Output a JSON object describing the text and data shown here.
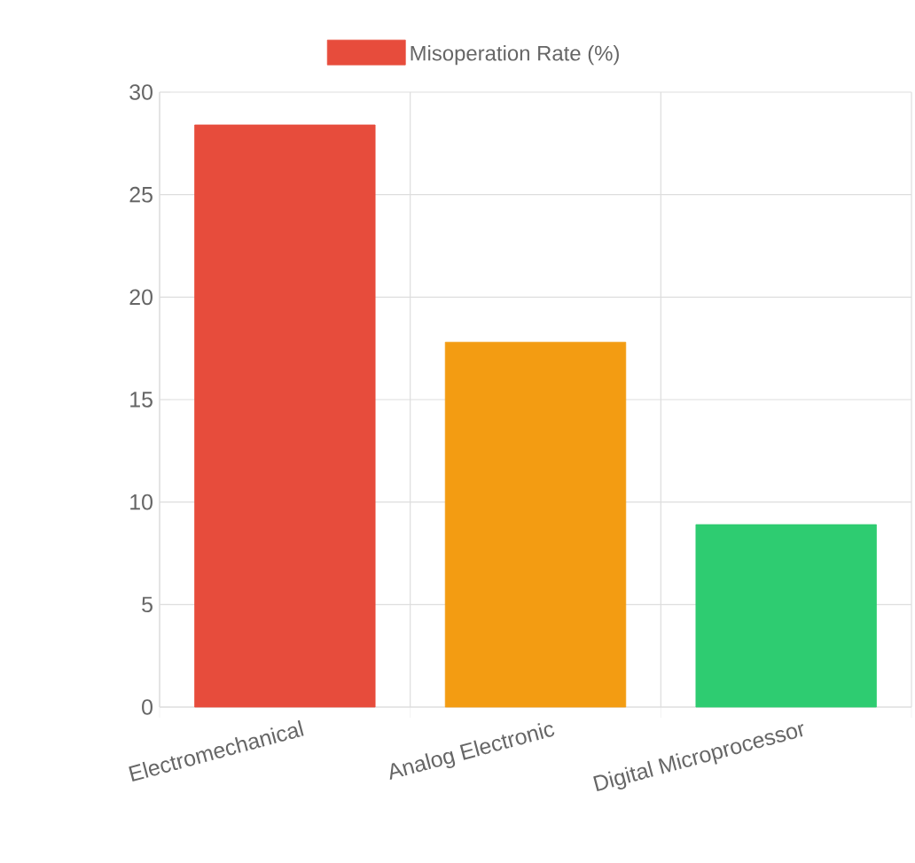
{
  "chart_data": {
    "type": "bar",
    "categories": [
      "Electromechanical",
      "Analog Electronic",
      "Digital Microprocessor"
    ],
    "series": [
      {
        "name": "Misoperation Rate (%)",
        "colors": [
          "#e74c3c",
          "#f39c12",
          "#2ecc71"
        ],
        "values": [
          28.4,
          17.8,
          8.9
        ]
      }
    ],
    "ylim": [
      0,
      30
    ],
    "yticks": [
      0,
      5,
      10,
      15,
      20,
      25,
      30
    ],
    "grid": true,
    "legend": "top"
  }
}
